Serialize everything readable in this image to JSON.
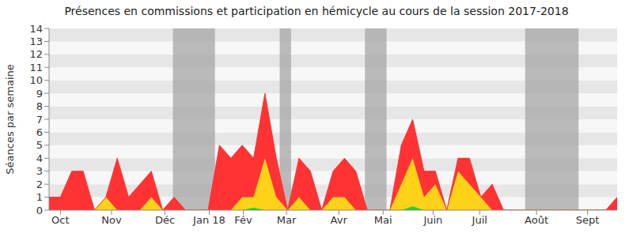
{
  "chart_data": {
    "type": "area",
    "title": "Présences en commissions et participation en hémicycle au cours de la session 2017-2018",
    "y_label": "Séances par semaine",
    "stacked": true,
    "grid": true,
    "x": [
      0,
      1,
      2,
      3,
      4,
      5,
      6,
      7,
      8,
      9,
      10,
      11,
      12,
      13,
      14,
      15,
      16,
      17,
      18,
      19,
      20,
      21,
      22,
      23,
      24,
      25,
      26,
      27,
      28,
      29,
      30,
      31,
      32,
      33,
      34,
      35,
      36,
      37,
      38,
      39,
      40,
      41,
      42,
      43,
      44,
      45,
      46,
      47,
      48,
      49,
      50
    ],
    "xlim": [
      0,
      50
    ],
    "xticks": [
      {
        "value": 1,
        "label": "Oct"
      },
      {
        "value": 5.5,
        "label": "Nov"
      },
      {
        "value": 10.2,
        "label": "Déc"
      },
      {
        "value": 14.1,
        "label": "Jan 18"
      },
      {
        "value": 17.1,
        "label": "Fév"
      },
      {
        "value": 20.9,
        "label": "Mar"
      },
      {
        "value": 25.5,
        "label": "Avr"
      },
      {
        "value": 29.4,
        "label": "Mai"
      },
      {
        "value": 33.8,
        "label": "Juin"
      },
      {
        "value": 37.9,
        "label": "Juil"
      },
      {
        "value": 42.9,
        "label": "Août"
      },
      {
        "value": 47.4,
        "label": "Sept"
      }
    ],
    "ylim": [
      0,
      14
    ],
    "yticks": [
      0,
      1,
      2,
      3,
      4,
      5,
      6,
      7,
      8,
      9,
      10,
      11,
      12,
      13,
      14
    ],
    "shaded_periods": [
      [
        10.9,
        14.6
      ],
      [
        20.3,
        21.3
      ],
      [
        27.8,
        29.7
      ],
      [
        41.9,
        46.6
      ]
    ],
    "series": [
      {
        "color": "#33cc33",
        "values": [
          0,
          0,
          0,
          0,
          0,
          0,
          0,
          0,
          0,
          0,
          0,
          0,
          0,
          0,
          0,
          0,
          0,
          0,
          0.2,
          0,
          0,
          0,
          0,
          0,
          0,
          0,
          0,
          0,
          0,
          0,
          0,
          0,
          0.3,
          0,
          0,
          0,
          0,
          0,
          0,
          0,
          0,
          0,
          0,
          0,
          0,
          0,
          0,
          0,
          0,
          0,
          0
        ]
      },
      {
        "color": "#ffd21a",
        "values": [
          0,
          0,
          0,
          0,
          0,
          1,
          0,
          0,
          0,
          1,
          0,
          0,
          0,
          0,
          0,
          0,
          0,
          1,
          0.8,
          4,
          1,
          0,
          1,
          0,
          0,
          1,
          1,
          0,
          0,
          0,
          0,
          2,
          3.7,
          1,
          2,
          0,
          3,
          2,
          1,
          0,
          0,
          0,
          0,
          0,
          0,
          0,
          0,
          0,
          0,
          0,
          0
        ]
      },
      {
        "color": "#ff3333",
        "values": [
          1,
          1,
          3,
          3,
          0,
          0,
          4,
          1,
          2,
          2,
          0,
          1,
          0,
          0,
          0,
          5,
          4,
          4,
          3,
          5,
          3,
          0,
          3,
          3,
          0,
          2,
          3,
          3,
          0,
          0,
          0,
          3,
          3,
          2,
          1,
          0,
          1,
          2,
          0,
          2,
          0,
          0,
          0,
          0,
          0,
          0,
          0,
          0,
          0,
          0,
          1
        ]
      }
    ]
  }
}
